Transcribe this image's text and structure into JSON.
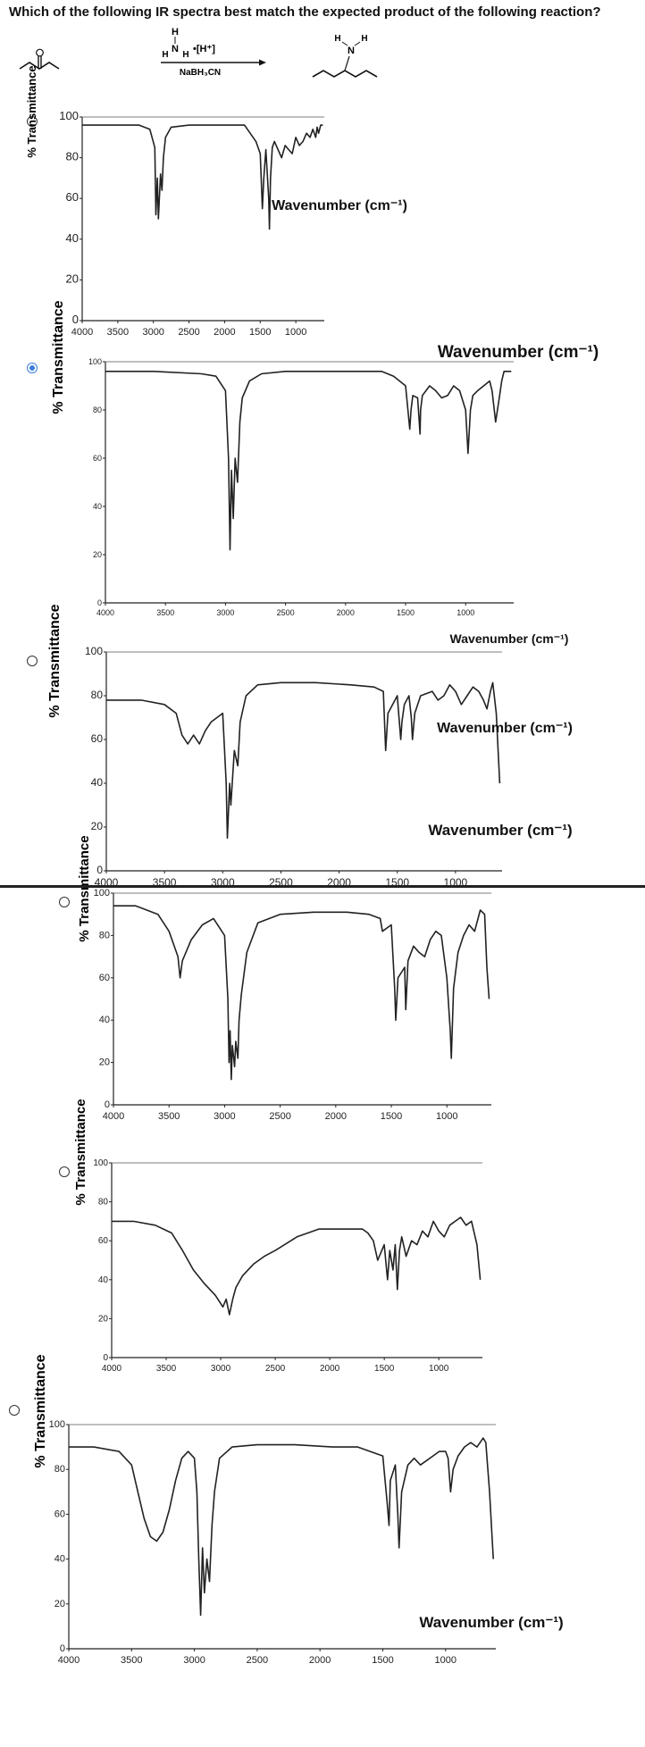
{
  "question": "Which of the following IR spectra best match the expected product of the following reaction?",
  "reaction": {
    "reagent_top": "H",
    "reagent_n": "N",
    "reagent_h_left": "H",
    "reagent_h_right": "H",
    "acid": "•[H⁺]",
    "reducing_agent": "NaBH₃CN",
    "product_h_left": "H",
    "product_h_right": "H",
    "product_n": "N"
  },
  "options": [
    {
      "selected": false
    },
    {
      "selected": true
    },
    {
      "selected": false
    },
    {
      "selected": false
    },
    {
      "selected": false
    },
    {
      "selected": false
    }
  ],
  "chart_data": [
    {
      "type": "line",
      "ylabel": "% Transmittance",
      "xlabel": "Wavenumber (cm⁻¹)",
      "xlim": [
        4000,
        600
      ],
      "ylim": [
        0,
        100
      ],
      "x_ticks": [
        "4000",
        "3500",
        "3000",
        "2500",
        "2000",
        "1500",
        "1000"
      ],
      "y_ticks": [
        "100",
        "80",
        "60",
        "40",
        "20",
        "0"
      ],
      "series": [
        {
          "x": [
            4000,
            3600,
            3200,
            3050,
            2980,
            2965,
            2945,
            2930,
            2900,
            2880,
            2860,
            2830,
            2750,
            2500,
            2200,
            1900,
            1720,
            1680,
            1600,
            1560,
            1500,
            1470,
            1450,
            1420,
            1380,
            1370,
            1355,
            1330,
            1300,
            1250,
            1200,
            1150,
            1100,
            1050,
            1000,
            950,
            900,
            850,
            800,
            760,
            720,
            700,
            680,
            650,
            620
          ],
          "y": [
            96,
            96,
            96,
            94,
            85,
            52,
            70,
            50,
            72,
            64,
            80,
            90,
            95,
            96,
            96,
            96,
            96,
            94,
            90,
            88,
            82,
            55,
            70,
            84,
            60,
            45,
            70,
            85,
            88,
            84,
            80,
            86,
            84,
            82,
            90,
            86,
            88,
            92,
            90,
            94,
            90,
            95,
            92,
            96,
            96
          ]
        }
      ]
    },
    {
      "type": "line",
      "ylabel": "% Transmittance",
      "xlabel": "Wavenumber (cm⁻¹)",
      "xlim": [
        4000,
        600
      ],
      "ylim": [
        0,
        100
      ],
      "x_ticks": [
        "4000",
        "3500",
        "3000",
        "2500",
        "2000",
        "1500",
        "1000"
      ],
      "y_ticks": [
        "100",
        "80",
        "60",
        "40",
        "20",
        "0"
      ],
      "series": [
        {
          "x": [
            4000,
            3600,
            3200,
            3080,
            3000,
            2975,
            2962,
            2950,
            2935,
            2920,
            2900,
            2880,
            2860,
            2800,
            2700,
            2500,
            2200,
            1900,
            1700,
            1600,
            1500,
            1465,
            1455,
            1440,
            1400,
            1380,
            1375,
            1360,
            1330,
            1300,
            1250,
            1200,
            1150,
            1100,
            1050,
            1000,
            980,
            960,
            940,
            900,
            850,
            800,
            780,
            750,
            720,
            700,
            680,
            650,
            620
          ],
          "y": [
            96,
            96,
            95,
            94,
            88,
            60,
            22,
            55,
            35,
            60,
            50,
            75,
            85,
            92,
            95,
            96,
            96,
            96,
            96,
            94,
            90,
            72,
            80,
            86,
            85,
            70,
            80,
            86,
            88,
            90,
            88,
            85,
            86,
            90,
            88,
            80,
            62,
            80,
            86,
            88,
            90,
            92,
            88,
            75,
            85,
            92,
            96,
            96,
            96
          ]
        }
      ]
    },
    {
      "type": "line",
      "ylabel": "% Transmittance",
      "xlabel": "Wavenumber (cm⁻¹)",
      "xlim": [
        4000,
        600
      ],
      "ylim": [
        0,
        100
      ],
      "x_ticks": [
        "4000",
        "3500",
        "3000",
        "2500",
        "2000",
        "1500",
        "1000"
      ],
      "y_ticks": [
        "100",
        "80",
        "60",
        "40",
        "20",
        "0"
      ],
      "series": [
        {
          "x": [
            4000,
            3700,
            3500,
            3400,
            3350,
            3300,
            3250,
            3200,
            3150,
            3100,
            3000,
            2970,
            2960,
            2940,
            2930,
            2900,
            2870,
            2850,
            2800,
            2700,
            2500,
            2200,
            1900,
            1700,
            1620,
            1600,
            1580,
            1500,
            1470,
            1460,
            1440,
            1400,
            1380,
            1370,
            1350,
            1300,
            1200,
            1150,
            1100,
            1050,
            1000,
            950,
            900,
            850,
            800,
            760,
            730,
            700,
            680,
            650,
            620
          ],
          "y": [
            78,
            78,
            76,
            72,
            62,
            58,
            62,
            58,
            64,
            68,
            72,
            40,
            15,
            40,
            30,
            55,
            48,
            68,
            80,
            85,
            86,
            86,
            85,
            84,
            82,
            55,
            72,
            80,
            60,
            68,
            76,
            80,
            70,
            60,
            72,
            80,
            82,
            78,
            80,
            85,
            82,
            76,
            80,
            84,
            82,
            78,
            74,
            82,
            86,
            72,
            40
          ]
        }
      ]
    },
    {
      "type": "line",
      "ylabel": "% Transmittance",
      "xlabel": "Wavenumber (cm⁻¹)",
      "xlim": [
        4000,
        600
      ],
      "ylim": [
        0,
        100
      ],
      "x_ticks": [
        "4000",
        "3500",
        "3000",
        "2500",
        "2000",
        "1500",
        "1000"
      ],
      "y_ticks": [
        "100",
        "80",
        "60",
        "40",
        "20",
        "0"
      ],
      "series": [
        {
          "x": [
            4000,
            3800,
            3600,
            3500,
            3420,
            3400,
            3380,
            3300,
            3200,
            3100,
            3000,
            2970,
            2960,
            2950,
            2940,
            2930,
            2910,
            2900,
            2880,
            2870,
            2850,
            2800,
            2700,
            2500,
            2200,
            1900,
            1700,
            1600,
            1580,
            1500,
            1470,
            1460,
            1440,
            1380,
            1370,
            1350,
            1300,
            1250,
            1200,
            1150,
            1100,
            1050,
            1000,
            970,
            960,
            940,
            900,
            850,
            800,
            750,
            700,
            660,
            640,
            620
          ],
          "y": [
            94,
            94,
            90,
            82,
            70,
            60,
            68,
            78,
            85,
            88,
            80,
            50,
            20,
            35,
            12,
            28,
            18,
            30,
            22,
            40,
            52,
            72,
            86,
            90,
            91,
            91,
            90,
            88,
            82,
            85,
            55,
            40,
            60,
            65,
            45,
            68,
            75,
            72,
            70,
            78,
            82,
            80,
            60,
            35,
            22,
            55,
            72,
            80,
            85,
            82,
            92,
            90,
            65,
            50
          ]
        }
      ]
    },
    {
      "type": "line",
      "ylabel": "% Transmittance",
      "xlabel": "Wavenumber (cm⁻¹)",
      "xlim": [
        4000,
        600
      ],
      "ylim": [
        0,
        100
      ],
      "x_ticks": [
        "4000",
        "3500",
        "3000",
        "2500",
        "2000",
        "1500",
        "1000"
      ],
      "y_ticks": [
        "100",
        "80",
        "60",
        "40",
        "20",
        "0"
      ],
      "series": [
        {
          "x": [
            4000,
            3800,
            3600,
            3450,
            3350,
            3250,
            3150,
            3050,
            2980,
            2950,
            2920,
            2890,
            2860,
            2800,
            2700,
            2600,
            2500,
            2300,
            2100,
            1900,
            1750,
            1700,
            1650,
            1600,
            1560,
            1500,
            1470,
            1450,
            1420,
            1400,
            1380,
            1360,
            1340,
            1300,
            1250,
            1200,
            1150,
            1100,
            1050,
            1000,
            950,
            900,
            850,
            800,
            750,
            700,
            650,
            620
          ],
          "y": [
            70,
            70,
            68,
            64,
            55,
            45,
            38,
            32,
            26,
            30,
            22,
            30,
            36,
            42,
            48,
            52,
            55,
            62,
            66,
            66,
            66,
            66,
            64,
            60,
            50,
            58,
            40,
            55,
            45,
            58,
            35,
            55,
            62,
            52,
            60,
            58,
            65,
            62,
            70,
            65,
            62,
            68,
            70,
            72,
            68,
            70,
            58,
            40
          ]
        }
      ]
    },
    {
      "type": "line",
      "ylabel": "% Transmittance",
      "xlabel": "Wavenumber (cm⁻¹)",
      "xlim": [
        4000,
        600
      ],
      "ylim": [
        0,
        100
      ],
      "x_ticks": [
        "4000",
        "3500",
        "3000",
        "2500",
        "2000",
        "1500",
        "1000"
      ],
      "y_ticks": [
        "100",
        "80",
        "60",
        "40",
        "20",
        "0"
      ],
      "series": [
        {
          "x": [
            4000,
            3800,
            3600,
            3500,
            3450,
            3400,
            3350,
            3300,
            3250,
            3200,
            3150,
            3100,
            3050,
            3000,
            2980,
            2965,
            2950,
            2935,
            2920,
            2900,
            2880,
            2860,
            2840,
            2800,
            2700,
            2500,
            2200,
            1900,
            1700,
            1600,
            1500,
            1465,
            1450,
            1440,
            1400,
            1380,
            1370,
            1350,
            1300,
            1250,
            1200,
            1150,
            1100,
            1050,
            1000,
            980,
            960,
            940,
            900,
            850,
            800,
            750,
            700,
            680,
            650,
            620
          ],
          "y": [
            90,
            90,
            88,
            82,
            70,
            58,
            50,
            48,
            52,
            62,
            75,
            85,
            88,
            85,
            70,
            40,
            15,
            45,
            25,
            40,
            30,
            55,
            70,
            85,
            90,
            91,
            91,
            90,
            90,
            88,
            86,
            65,
            55,
            75,
            82,
            60,
            45,
            70,
            82,
            85,
            82,
            84,
            86,
            88,
            88,
            85,
            70,
            80,
            86,
            90,
            92,
            90,
            94,
            92,
            70,
            40
          ]
        }
      ]
    }
  ]
}
